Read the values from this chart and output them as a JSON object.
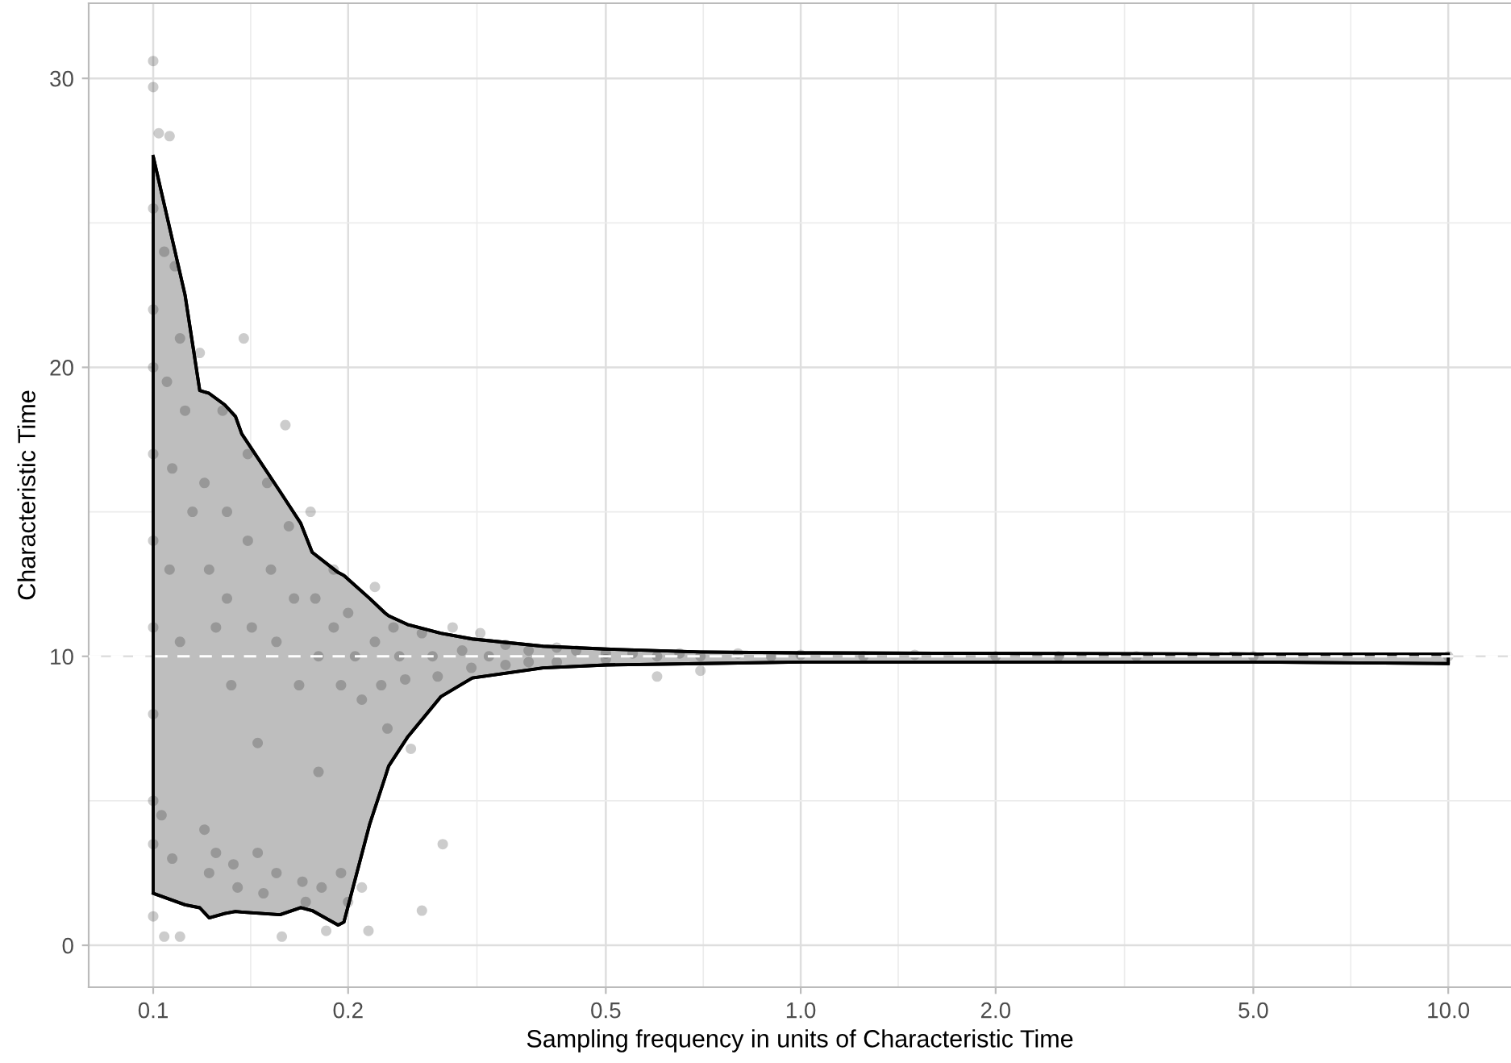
{
  "chart_data": {
    "type": "scatter",
    "xlabel": "Sampling frequency in units of Characteristic Time",
    "ylabel": "Characteristic Time",
    "log": "x",
    "xlim": [
      0.0795,
      12.5
    ],
    "xticks": [
      {
        "value": 0.1,
        "label": "0.1"
      },
      {
        "value": 0.2,
        "label": "0.2"
      },
      {
        "value": 0.5,
        "label": "0.5"
      },
      {
        "value": 1,
        "label": "1.0"
      },
      {
        "value": 2,
        "label": "2.0"
      },
      {
        "value": 5,
        "label": "5.0"
      },
      {
        "value": 10,
        "label": "10.0"
      }
    ],
    "ylim": [
      -1.45,
      32.6
    ],
    "yticks": [
      0,
      10,
      20,
      30
    ],
    "grid": true,
    "legend": false,
    "ref_lines": [
      {
        "axis": "y",
        "value": 10,
        "label": null,
        "color": "#ffffff",
        "line_style": "dashed"
      }
    ],
    "series": [
      {
        "type": "line",
        "color": "#000000",
        "x": [
          0.1,
          0.112,
          0.118,
          0.122,
          0.129,
          0.134,
          0.137,
          0.157,
          0.169,
          0.176,
          0.193,
          0.197,
          0.216,
          0.228,
          0.231,
          0.247,
          0.278,
          0.311,
          0.4,
          0.5,
          0.7,
          1,
          2,
          5,
          10
        ],
        "values": [
          27.3,
          22.5,
          19.2,
          19.1,
          18.7,
          18.3,
          17.7,
          15.7,
          14.6,
          13.6,
          12.9,
          12.8,
          12.0,
          11.5,
          11.4,
          11.1,
          10.8,
          10.6,
          10.35,
          10.25,
          10.15,
          10.12,
          10.1,
          10.08,
          10.08
        ],
        "upper": [
          27.3,
          22.5,
          19.2,
          19.1,
          18.7,
          18.3,
          17.7,
          15.7,
          14.6,
          13.6,
          12.9,
          12.8,
          12.0,
          11.5,
          11.4,
          11.1,
          10.8,
          10.6,
          10.35,
          10.25,
          10.15,
          10.12,
          10.1,
          10.08,
          10.08
        ],
        "lower": [
          1.8,
          1.4,
          1.3,
          0.95,
          1.1,
          1.17,
          1.15,
          1.06,
          1.3,
          1.2,
          0.7,
          0.8,
          4.2,
          5.8,
          6.2,
          7.2,
          8.6,
          9.25,
          9.6,
          9.7,
          9.75,
          9.8,
          9.8,
          9.8,
          9.75
        ]
      },
      {
        "type": "line",
        "color": "#000000",
        "x": [
          0.1,
          0.112,
          0.118,
          0.122,
          0.129,
          0.134,
          0.137,
          0.157,
          0.169,
          0.176,
          0.193,
          0.197,
          0.216,
          0.228,
          0.231,
          0.247,
          0.278,
          0.311,
          0.4,
          0.5,
          0.7,
          1,
          2,
          5,
          10
        ],
        "values": [
          1.8,
          1.4,
          1.3,
          0.95,
          1.1,
          1.17,
          1.15,
          1.06,
          1.3,
          1.2,
          0.7,
          0.8,
          4.2,
          5.8,
          6.2,
          7.2,
          8.6,
          9.25,
          9.6,
          9.7,
          9.75,
          9.8,
          9.8,
          9.8,
          9.75
        ]
      },
      {
        "type": "scatter",
        "color": "#000000",
        "marker": "circle",
        "x": [
          0.1,
          0.1,
          0.102,
          0.106,
          0.1,
          0.104,
          0.1,
          0.108,
          0.1,
          0.105,
          0.11,
          0.1,
          0.107,
          0.112,
          0.1,
          0.106,
          0.115,
          0.1,
          0.11,
          0.1,
          0.1,
          0.103,
          0.1,
          0.107,
          0.1,
          0.104,
          0.11,
          0.118,
          0.12,
          0.122,
          0.125,
          0.12,
          0.122,
          0.125,
          0.128,
          0.13,
          0.13,
          0.132,
          0.133,
          0.135,
          0.138,
          0.14,
          0.14,
          0.142,
          0.145,
          0.145,
          0.148,
          0.15,
          0.152,
          0.155,
          0.155,
          0.158,
          0.16,
          0.162,
          0.165,
          0.168,
          0.17,
          0.172,
          0.175,
          0.178,
          0.18,
          0.18,
          0.182,
          0.185,
          0.19,
          0.19,
          0.195,
          0.195,
          0.2,
          0.2,
          0.205,
          0.21,
          0.21,
          0.215,
          0.22,
          0.22,
          0.225,
          0.23,
          0.235,
          0.24,
          0.245,
          0.25,
          0.26,
          0.26,
          0.27,
          0.275,
          0.28,
          0.29,
          0.3,
          0.31,
          0.32,
          0.33,
          0.35,
          0.35,
          0.38,
          0.38,
          0.42,
          0.42,
          0.45,
          0.5,
          0.5,
          0.55,
          0.6,
          0.6,
          0.65,
          0.7,
          0.7,
          0.8,
          0.9,
          1.0,
          1.25,
          1.5,
          2.0,
          2.5,
          3.3,
          5,
          10
        ],
        "values": [
          30.6,
          29.7,
          28.1,
          28.0,
          25.5,
          24.0,
          22,
          23.5,
          20,
          19.5,
          21,
          17,
          16.5,
          18.5,
          14,
          13,
          15,
          11,
          10.5,
          8,
          5,
          4.5,
          3.5,
          3,
          1,
          0.3,
          0.3,
          20.5,
          16,
          13,
          11,
          4,
          2.5,
          3.2,
          18.5,
          15,
          12,
          9,
          2.8,
          2,
          21,
          17,
          14,
          11,
          7,
          3.2,
          1.8,
          16,
          13,
          10.5,
          2.5,
          0.3,
          18,
          14.5,
          12,
          9,
          2.2,
          1.5,
          15,
          12,
          10,
          6,
          2,
          0.5,
          13,
          11,
          9,
          2.5,
          1.5,
          11.5,
          10,
          8.5,
          2,
          0.5,
          12.4,
          10.5,
          9,
          7.5,
          11,
          10,
          9.2,
          6.8,
          1.2,
          10.8,
          10,
          9.3,
          3.5,
          11,
          10.2,
          9.6,
          10.8,
          10,
          10.4,
          9.7,
          10.2,
          9.8,
          10.3,
          9.8,
          10.2,
          10.1,
          9.9,
          10.1,
          10,
          9.3,
          10.1,
          10,
          9.5,
          10.1,
          10,
          10.05,
          10,
          10.05,
          10,
          10,
          10,
          10,
          10
        ]
      }
    ]
  }
}
